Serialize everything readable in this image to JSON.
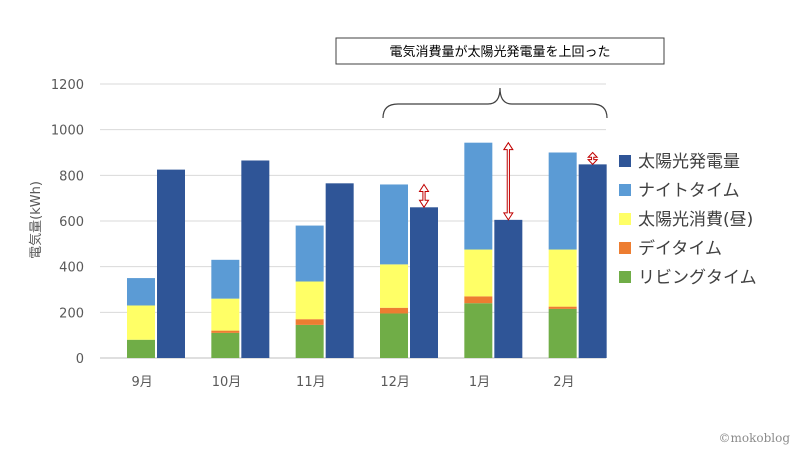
{
  "chart_data": {
    "type": "bar",
    "categories": [
      "9月",
      "10月",
      "11月",
      "12月",
      "1月",
      "2月"
    ],
    "ylabel": "電気量(kWh)",
    "ylim": [
      0,
      1200
    ],
    "yticks": [
      0,
      200,
      400,
      600,
      800,
      1000,
      1200
    ],
    "grid": true,
    "legend_position": "right",
    "stacked_series": [
      {
        "name": "リビングタイム",
        "color": "#70ad47",
        "values": [
          80,
          110,
          145,
          195,
          240,
          215
        ]
      },
      {
        "name": "デイタイム",
        "color": "#ed7d31",
        "values": [
          0,
          10,
          25,
          25,
          30,
          10
        ]
      },
      {
        "name": "太陽光消費(昼)",
        "color": "#ffff66",
        "values": [
          150,
          140,
          165,
          190,
          205,
          250
        ]
      },
      {
        "name": "ナイトタイム",
        "color": "#5b9bd5",
        "values": [
          120,
          170,
          245,
          350,
          468,
          425
        ]
      }
    ],
    "solar_series": {
      "name": "太陽光発電量",
      "color": "#2f5597",
      "values": [
        825,
        865,
        765,
        660,
        605,
        848
      ]
    },
    "legend_order": [
      "太陽光発電量",
      "ナイトタイム",
      "太陽光消費(昼)",
      "デイタイム",
      "リビングタイム"
    ],
    "annotation": "電気消費量が太陽光発電量を上回った"
  },
  "watermark": "©mokoblog"
}
